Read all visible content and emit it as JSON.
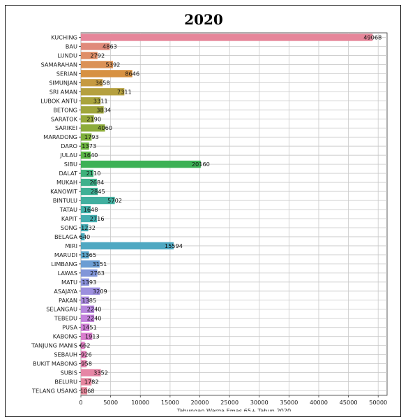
{
  "chart_data": {
    "type": "bar",
    "orientation": "horizontal",
    "title": "2020",
    "xlabel": "Tabungan Warga Emas 65+ Tahun 2020",
    "ylabel": "",
    "xlim": [
      0,
      51500
    ],
    "xticks": [
      0,
      5000,
      10000,
      15000,
      20000,
      25000,
      30000,
      35000,
      40000,
      45000,
      50000
    ],
    "grid": true,
    "categories": [
      "KUCHING",
      "BAU",
      "LUNDU",
      "SAMARAHAN",
      "SERIAN",
      "SIMUNJAN",
      "SRI AMAN",
      "LUBOK ANTU",
      "BETONG",
      "SARATOK",
      "SARIKEI",
      "MARADONG",
      "DARO",
      "JULAU",
      "SIBU",
      "DALAT",
      "MUKAH",
      "KANOWIT",
      "BINTULU",
      "TATAU",
      "KAPIT",
      "SONG",
      "BELAGA",
      "MIRI",
      "MARUDI",
      "LIMBANG",
      "LAWAS",
      "MATU",
      "ASAJAYA",
      "PAKAN",
      "SELANGAU",
      "TEBEDU",
      "PUSA",
      "KABONG",
      "TANJUNG MANIS",
      "SEBAUH",
      "BUKIT MABONG",
      "SUBIS",
      "BELURU",
      "TELANG USANG"
    ],
    "values": [
      49068,
      4863,
      2792,
      5392,
      8646,
      3658,
      7311,
      3311,
      3834,
      2190,
      4060,
      1793,
      1373,
      1640,
      20160,
      2110,
      2684,
      2845,
      5702,
      1648,
      2716,
      1232,
      640,
      15594,
      1365,
      3151,
      2763,
      1393,
      3209,
      1385,
      2240,
      2240,
      1451,
      1913,
      662,
      926,
      958,
      3352,
      1782,
      1068
    ],
    "colors": [
      "#e6869a",
      "#e08a7a",
      "#df8e68",
      "#db9257",
      "#d79142",
      "#c69a41",
      "#b5a03f",
      "#a9a43d",
      "#a0a63c",
      "#97a93c",
      "#8dac3b",
      "#7eb03b",
      "#6bb43f",
      "#5bb647",
      "#3cb155",
      "#3eb17a",
      "#3fb18c",
      "#40b096",
      "#41af9f",
      "#42afa8",
      "#44aeb0",
      "#46adb6",
      "#49abbd",
      "#4fa8c2",
      "#59a4ca",
      "#6b9dd3",
      "#8196d9",
      "#8c93de",
      "#9c8fde",
      "#aa8add",
      "#b686dd",
      "#c381dc",
      "#cf7fd6",
      "#d97dcd",
      "#df7fc3",
      "#e282b9",
      "#e484ae",
      "#e686a5",
      "#e6879f",
      "#e6889b"
    ]
  }
}
